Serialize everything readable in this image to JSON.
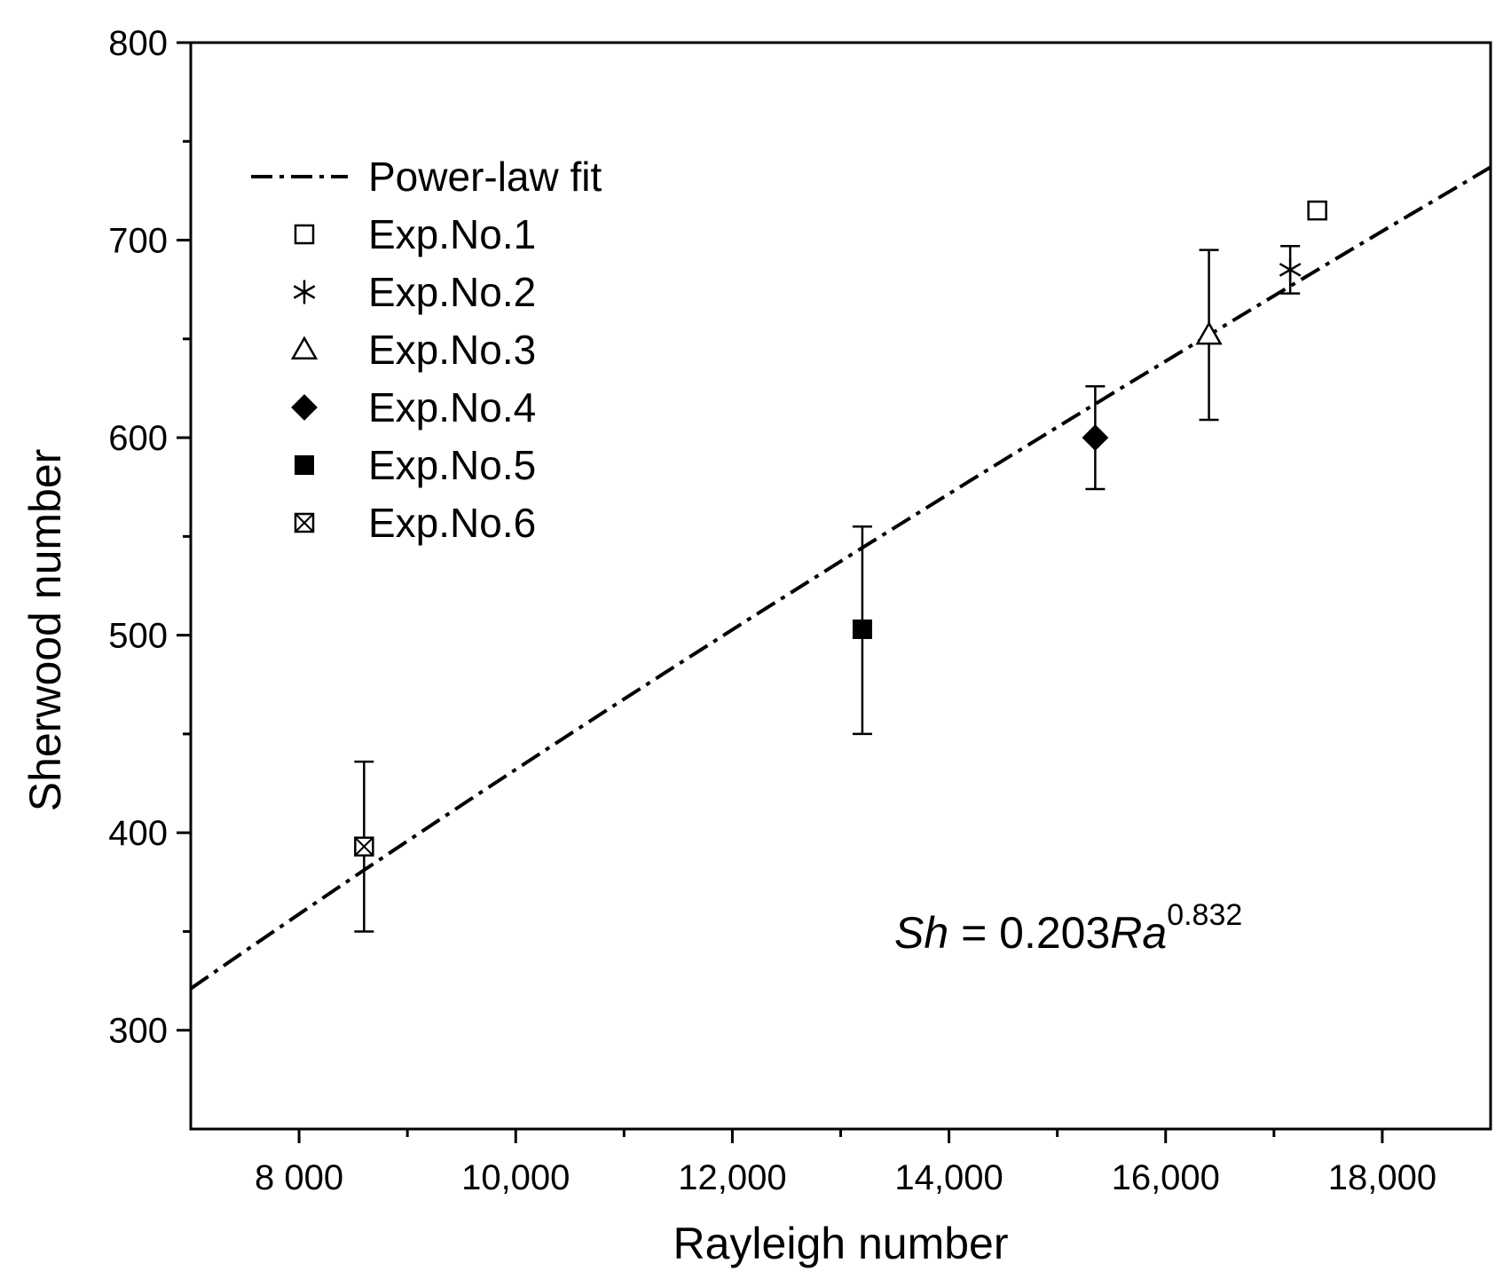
{
  "chart_data": {
    "type": "scatter",
    "title": "",
    "xlabel": "Rayleigh number",
    "ylabel": "Sherwood number",
    "xlim": [
      7000,
      19000
    ],
    "ylim": [
      250,
      800
    ],
    "x_ticks": [
      {
        "value": 8000,
        "label": "8 000"
      },
      {
        "value": 10000,
        "label": "10,000"
      },
      {
        "value": 12000,
        "label": "12,000"
      },
      {
        "value": 14000,
        "label": "14,000"
      },
      {
        "value": 16000,
        "label": "16,000"
      },
      {
        "value": 18000,
        "label": "18,000"
      }
    ],
    "x_minor_ticks": [
      9000,
      11000,
      13000,
      15000,
      17000
    ],
    "y_ticks": [
      {
        "value": 300,
        "label": "300"
      },
      {
        "value": 400,
        "label": "400"
      },
      {
        "value": 500,
        "label": "500"
      },
      {
        "value": 600,
        "label": "600"
      },
      {
        "value": 700,
        "label": "700"
      },
      {
        "value": 800,
        "label": "800"
      }
    ],
    "y_minor_ticks": [
      350,
      450,
      550,
      650,
      750
    ],
    "grid": false,
    "legend_position": "top-left",
    "fit": {
      "name": "Power-law fit",
      "coefficient": 0.203,
      "exponent": 0.832,
      "x_range": [
        7000,
        19000
      ],
      "style": "dash-dot"
    },
    "series": [
      {
        "name": "Exp.No.1",
        "marker": "open-square",
        "x": 17400,
        "y": 715,
        "err_low": null,
        "err_high": null
      },
      {
        "name": "Exp.No.2",
        "marker": "asterisk",
        "x": 17150,
        "y": 685,
        "err_low": 673,
        "err_high": 697
      },
      {
        "name": "Exp.No.3",
        "marker": "open-triangle",
        "x": 16400,
        "y": 652,
        "err_low": 609,
        "err_high": 695
      },
      {
        "name": "Exp.No.4",
        "marker": "filled-diamond",
        "x": 15350,
        "y": 600,
        "err_low": 574,
        "err_high": 626
      },
      {
        "name": "Exp.No.5",
        "marker": "filled-square",
        "x": 13200,
        "y": 503,
        "err_low": 450,
        "err_high": 555
      },
      {
        "name": "Exp.No.6",
        "marker": "crossed-square",
        "x": 8600,
        "y": 393,
        "err_low": 350,
        "err_high": 436
      }
    ],
    "annotation": {
      "sh": "Sh",
      "equals": " = 0.203",
      "ra": "Ra",
      "exp": "0.832"
    }
  }
}
